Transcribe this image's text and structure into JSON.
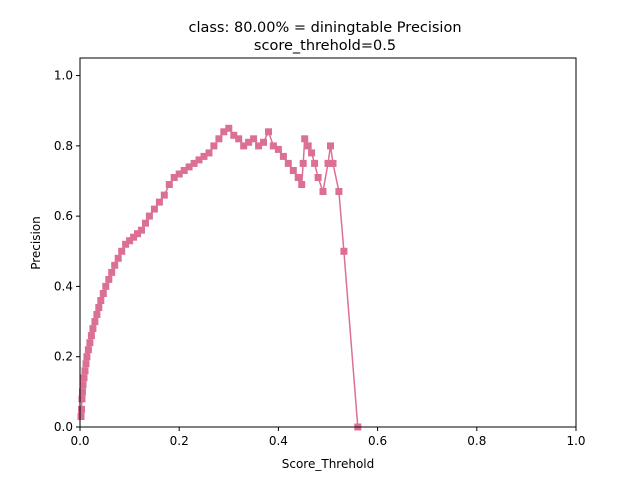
{
  "chart_data": {
    "type": "line",
    "title_line1": "class: 80.00% = diningtable Precision",
    "title_line2": "score_threhold=0.5",
    "xlabel": "Score_Threhold",
    "ylabel": "Precision",
    "xlim": [
      0,
      1
    ],
    "ylim": [
      0,
      1.05
    ],
    "xticks": [
      "0.0",
      "0.2",
      "0.4",
      "0.6",
      "0.8",
      "1.0"
    ],
    "yticks": [
      "0.0",
      "0.2",
      "0.4",
      "0.6",
      "0.8",
      "1.0"
    ],
    "grid": false,
    "series": [
      {
        "color": "#db7093",
        "marker": "square",
        "points": [
          [
            0.002,
            0.03
          ],
          [
            0.003,
            0.05
          ],
          [
            0.004,
            0.08
          ],
          [
            0.005,
            0.1
          ],
          [
            0.006,
            0.12
          ],
          [
            0.008,
            0.14
          ],
          [
            0.01,
            0.16
          ],
          [
            0.012,
            0.18
          ],
          [
            0.014,
            0.2
          ],
          [
            0.017,
            0.22
          ],
          [
            0.02,
            0.24
          ],
          [
            0.023,
            0.26
          ],
          [
            0.026,
            0.28
          ],
          [
            0.03,
            0.3
          ],
          [
            0.034,
            0.32
          ],
          [
            0.038,
            0.34
          ],
          [
            0.042,
            0.36
          ],
          [
            0.047,
            0.38
          ],
          [
            0.052,
            0.4
          ],
          [
            0.058,
            0.42
          ],
          [
            0.064,
            0.44
          ],
          [
            0.07,
            0.46
          ],
          [
            0.077,
            0.48
          ],
          [
            0.084,
            0.5
          ],
          [
            0.092,
            0.52
          ],
          [
            0.1,
            0.53
          ],
          [
            0.108,
            0.54
          ],
          [
            0.116,
            0.55
          ],
          [
            0.124,
            0.56
          ],
          [
            0.132,
            0.58
          ],
          [
            0.14,
            0.6
          ],
          [
            0.15,
            0.62
          ],
          [
            0.16,
            0.64
          ],
          [
            0.17,
            0.66
          ],
          [
            0.18,
            0.69
          ],
          [
            0.19,
            0.71
          ],
          [
            0.2,
            0.72
          ],
          [
            0.21,
            0.73
          ],
          [
            0.22,
            0.74
          ],
          [
            0.23,
            0.75
          ],
          [
            0.24,
            0.76
          ],
          [
            0.25,
            0.77
          ],
          [
            0.26,
            0.78
          ],
          [
            0.27,
            0.8
          ],
          [
            0.28,
            0.82
          ],
          [
            0.29,
            0.84
          ],
          [
            0.3,
            0.85
          ],
          [
            0.31,
            0.83
          ],
          [
            0.32,
            0.82
          ],
          [
            0.33,
            0.8
          ],
          [
            0.34,
            0.81
          ],
          [
            0.35,
            0.82
          ],
          [
            0.36,
            0.8
          ],
          [
            0.37,
            0.81
          ],
          [
            0.38,
            0.84
          ],
          [
            0.39,
            0.8
          ],
          [
            0.4,
            0.79
          ],
          [
            0.41,
            0.77
          ],
          [
            0.42,
            0.75
          ],
          [
            0.43,
            0.73
          ],
          [
            0.44,
            0.71
          ],
          [
            0.447,
            0.69
          ],
          [
            0.45,
            0.75
          ],
          [
            0.453,
            0.82
          ],
          [
            0.46,
            0.8
          ],
          [
            0.467,
            0.78
          ],
          [
            0.473,
            0.75
          ],
          [
            0.48,
            0.71
          ],
          [
            0.49,
            0.67
          ],
          [
            0.5,
            0.75
          ],
          [
            0.505,
            0.8
          ],
          [
            0.51,
            0.75
          ],
          [
            0.522,
            0.67
          ],
          [
            0.532,
            0.5
          ],
          [
            0.56,
            0.0
          ]
        ]
      }
    ]
  }
}
